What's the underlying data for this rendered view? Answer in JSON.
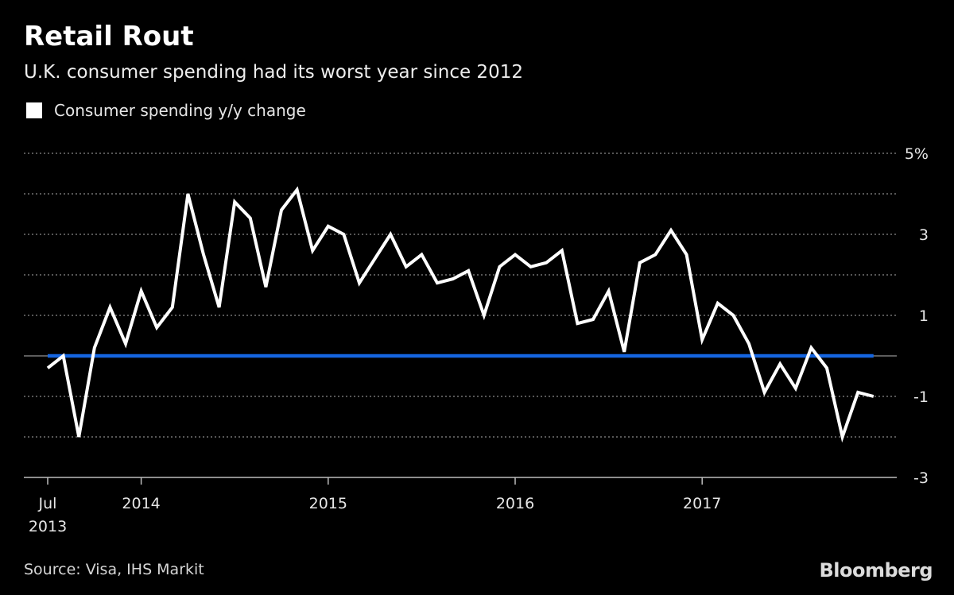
{
  "title": "Retail Rout",
  "subtitle": "U.K. consumer spending had its worst year since 2012",
  "source": "Source: Visa, IHS Markit",
  "brand": "Bloomberg",
  "chart_data": {
    "type": "line",
    "title": "Retail Rout",
    "subtitle": "U.K. consumer spending had its worst year since 2012",
    "xlabel": "",
    "ylabel": "",
    "ylim": [
      -3,
      5
    ],
    "yticks": [
      {
        "value": 5,
        "label": "5%"
      },
      {
        "value": 4,
        "label": ""
      },
      {
        "value": 3,
        "label": "3"
      },
      {
        "value": 2,
        "label": ""
      },
      {
        "value": 1,
        "label": "1"
      },
      {
        "value": 0,
        "label": ""
      },
      {
        "value": -1,
        "label": "-1"
      },
      {
        "value": -2,
        "label": ""
      },
      {
        "value": -3,
        "label": "-3"
      }
    ],
    "xticks": [
      {
        "date": "2013-07",
        "label": "Jul",
        "label2": "2013"
      },
      {
        "date": "2014-01",
        "label": "2014",
        "label2": ""
      },
      {
        "date": "2015-01",
        "label": "2015",
        "label2": ""
      },
      {
        "date": "2016-01",
        "label": "2016",
        "label2": ""
      },
      {
        "date": "2017-01",
        "label": "2017",
        "label2": ""
      }
    ],
    "grid": true,
    "legend_position": "top-left",
    "colors": {
      "series": "#ffffff",
      "zero_line": "#1565e0",
      "grid": "#8a8a8a",
      "background": "#000000"
    },
    "series": [
      {
        "name": "Consumer spending y/y change",
        "x": [
          "2013-07",
          "2013-08",
          "2013-09",
          "2013-10",
          "2013-11",
          "2013-12",
          "2014-01",
          "2014-02",
          "2014-03",
          "2014-04",
          "2014-05",
          "2014-06",
          "2014-07",
          "2014-08",
          "2014-09",
          "2014-10",
          "2014-11",
          "2014-12",
          "2015-01",
          "2015-02",
          "2015-03",
          "2015-04",
          "2015-05",
          "2015-06",
          "2015-07",
          "2015-08",
          "2015-09",
          "2015-10",
          "2015-11",
          "2015-12",
          "2016-01",
          "2016-02",
          "2016-03",
          "2016-04",
          "2016-05",
          "2016-06",
          "2016-07",
          "2016-08",
          "2016-09",
          "2016-10",
          "2016-11",
          "2016-12",
          "2017-01",
          "2017-02",
          "2017-03",
          "2017-04",
          "2017-05",
          "2017-06",
          "2017-07",
          "2017-08",
          "2017-09",
          "2017-10",
          "2017-11",
          "2017-12"
        ],
        "values": [
          -0.3,
          0.0,
          -2.0,
          0.2,
          1.2,
          0.3,
          1.6,
          0.7,
          1.2,
          4.0,
          2.5,
          1.2,
          3.8,
          3.4,
          1.7,
          3.6,
          4.1,
          2.6,
          3.2,
          3.0,
          1.8,
          2.4,
          3.0,
          2.2,
          2.5,
          1.8,
          1.9,
          2.1,
          1.0,
          2.2,
          2.5,
          2.2,
          2.3,
          2.6,
          0.8,
          0.9,
          1.6,
          0.1,
          2.3,
          2.5,
          3.1,
          2.5,
          0.4,
          1.3,
          1.0,
          0.3,
          -0.9,
          -0.2,
          -0.8,
          0.2,
          -0.3,
          -2.0,
          -0.9,
          -1.0
        ]
      }
    ]
  }
}
